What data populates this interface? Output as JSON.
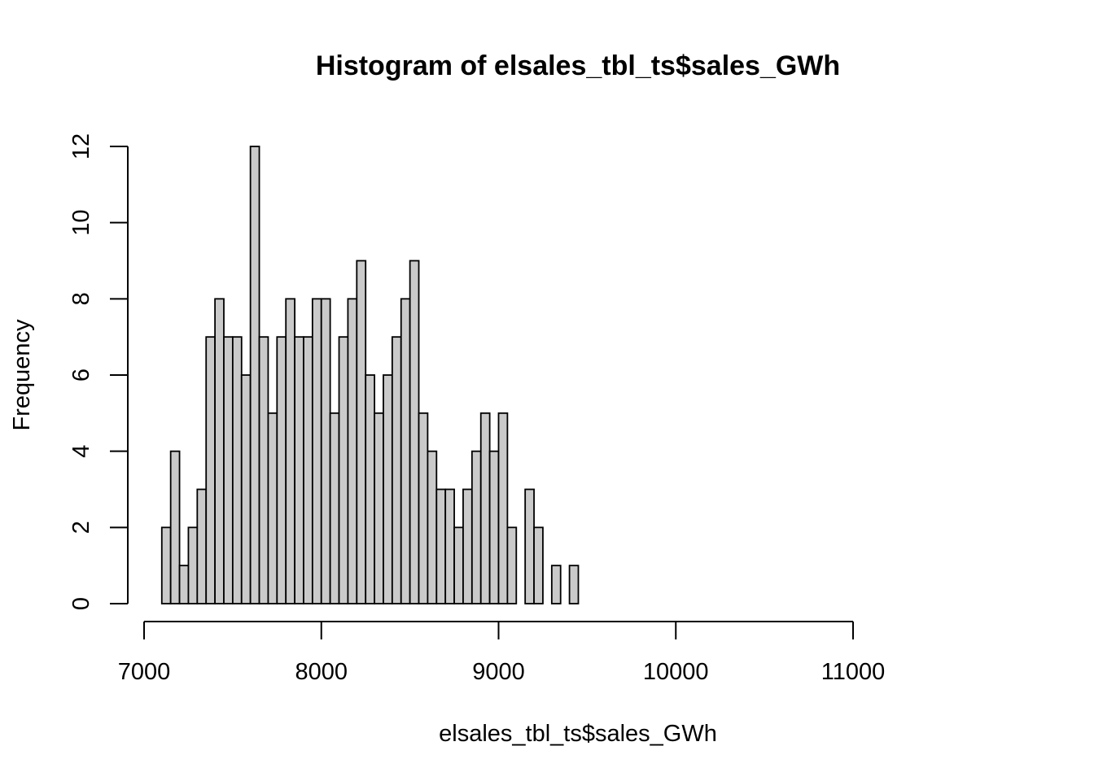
{
  "chart_data": {
    "type": "bar",
    "title": "Histogram of elsales_tbl_ts$sales_GWh",
    "xlabel": "elsales_tbl_ts$sales_GWh",
    "ylabel": "Frequency",
    "bin_start": 7100,
    "bin_width": 50,
    "values": [
      2,
      4,
      1,
      2,
      3,
      7,
      8,
      7,
      7,
      6,
      12,
      7,
      5,
      7,
      8,
      7,
      7,
      8,
      8,
      5,
      7,
      8,
      9,
      6,
      5,
      6,
      7,
      8,
      9,
      5,
      4,
      3,
      3,
      2,
      3,
      4,
      5,
      4,
      5,
      2,
      0,
      3,
      2,
      0,
      1,
      0,
      1
    ],
    "xlim": [
      7000,
      11800
    ],
    "ylim": [
      0,
      12
    ],
    "x_ticks": [
      7000,
      8000,
      9000,
      10000,
      11000
    ],
    "x_tick_labels": [
      "7000",
      "8000",
      "9000",
      "10000",
      "11000"
    ],
    "y_ticks": [
      0,
      2,
      4,
      6,
      8,
      10,
      12
    ],
    "y_tick_labels": [
      "0",
      "2",
      "4",
      "6",
      "8",
      "10",
      "12"
    ],
    "bar_fill": "#cacaca",
    "bar_stroke": "#000000",
    "grid": false,
    "legend": "none"
  }
}
